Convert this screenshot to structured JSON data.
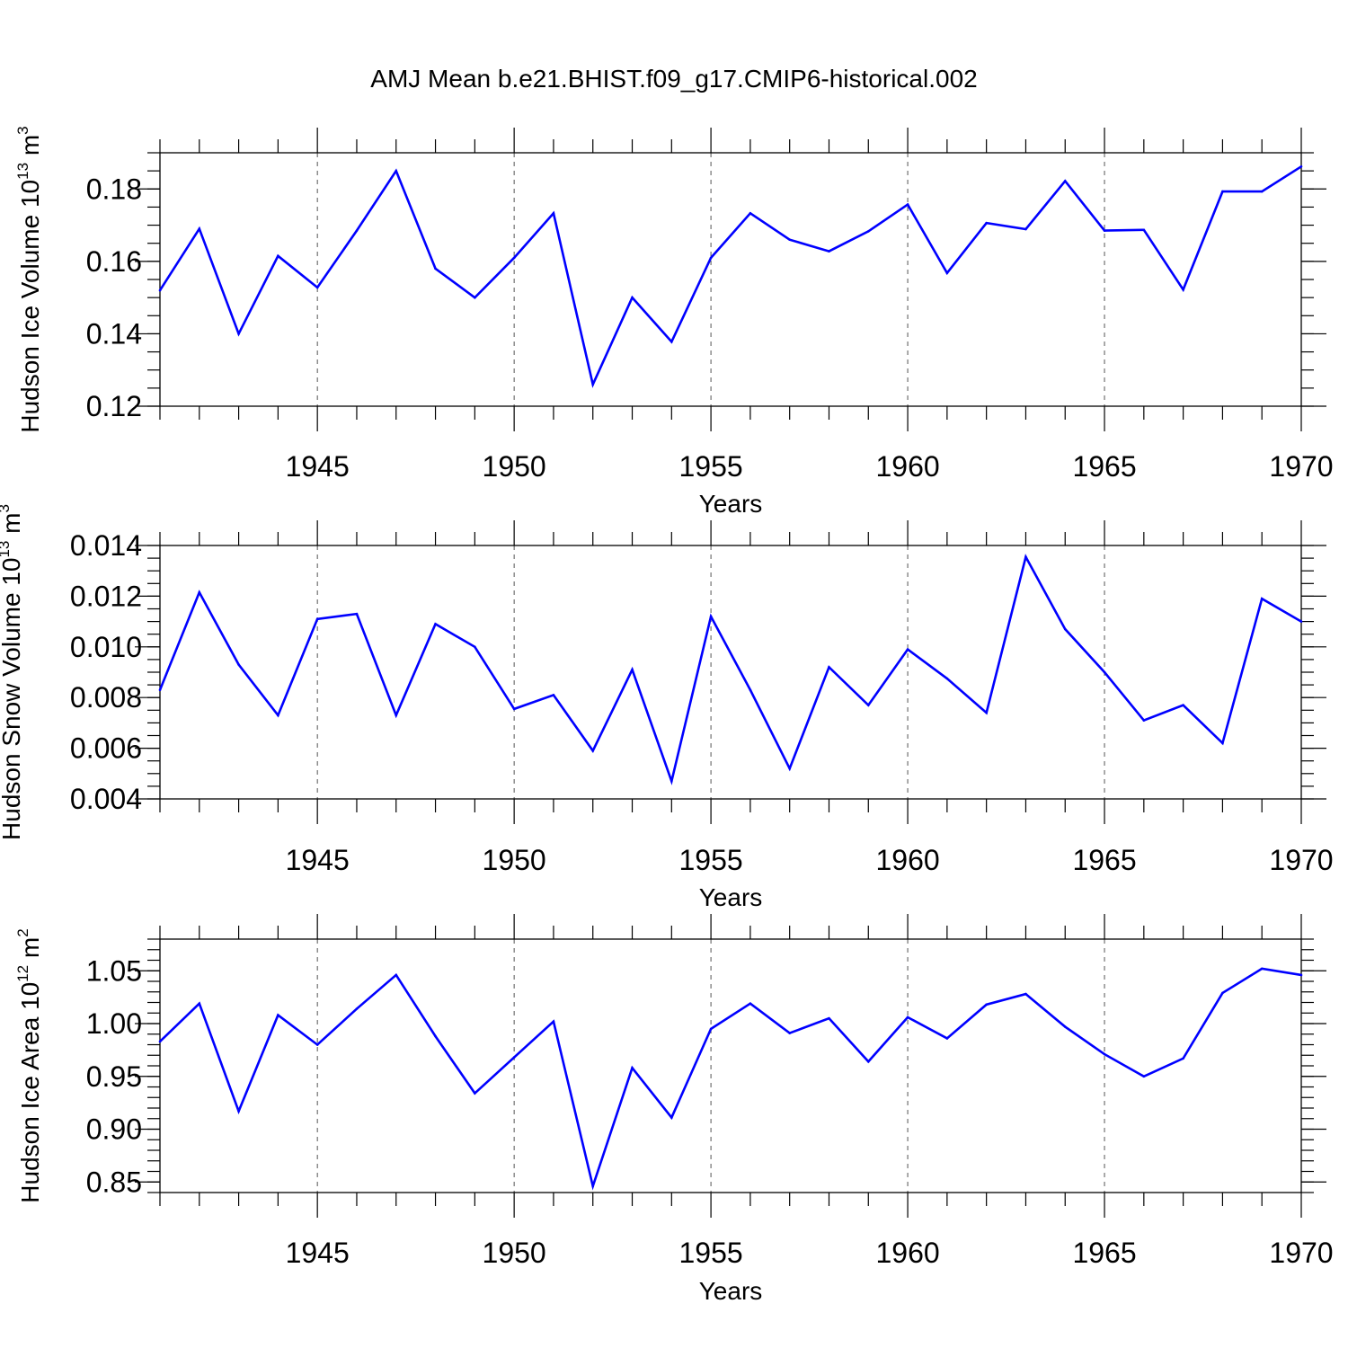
{
  "title": "AMJ Mean b.e21.BHIST.f09_g17.CMIP6-historical.002",
  "colors": {
    "series": "#0000ff",
    "axes": "#000000",
    "grid": "#555555"
  },
  "chart_data": [
    {
      "type": "line",
      "name": "ice-volume",
      "ylabel_main": "Hudson Ice Volume 10",
      "ylabel_exp": "13",
      "ylabel_unit": " m",
      "ylabel_unit_exp": "3",
      "xlabel": "Years",
      "xlim": [
        1941,
        1970
      ],
      "ylim": [
        0.12,
        0.19
      ],
      "yticks": [
        0.12,
        0.14,
        0.16,
        0.18
      ],
      "ytick_labels": [
        "0.12",
        "0.14",
        "0.16",
        "0.18"
      ],
      "yminor_step": 0.005,
      "xticks": [
        1945,
        1950,
        1955,
        1960,
        1965,
        1970
      ],
      "xtick_labels": [
        "1945",
        "1950",
        "1955",
        "1960",
        "1965",
        "1970"
      ],
      "grid": "x-dashed",
      "x": [
        1941,
        1942,
        1943,
        1944,
        1945,
        1946,
        1947,
        1948,
        1949,
        1950,
        1951,
        1952,
        1953,
        1954,
        1955,
        1956,
        1957,
        1958,
        1959,
        1960,
        1961,
        1962,
        1963,
        1964,
        1965,
        1966,
        1967,
        1968,
        1969,
        1970
      ],
      "values": [
        0.152,
        0.169,
        0.14,
        0.1615,
        0.1528,
        0.1685,
        0.185,
        0.158,
        0.15,
        0.161,
        0.1733,
        0.126,
        0.15,
        0.1378,
        0.161,
        0.1733,
        0.166,
        0.1628,
        0.1683,
        0.1757,
        0.1568,
        0.1706,
        0.1689,
        0.1822,
        0.1685,
        0.1687,
        0.1522,
        0.1793,
        0.1793,
        0.1862
      ]
    },
    {
      "type": "line",
      "name": "snow-volume",
      "ylabel_main": "Hudson Snow Volume 10",
      "ylabel_exp": "13",
      "ylabel_unit": " m",
      "ylabel_unit_exp": "3",
      "xlabel": "Years",
      "xlim": [
        1941,
        1970
      ],
      "ylim": [
        0.004,
        0.014
      ],
      "yticks": [
        0.004,
        0.006,
        0.008,
        0.01,
        0.012,
        0.014
      ],
      "ytick_labels": [
        "0.004",
        "0.006",
        "0.008",
        "0.010",
        "0.012",
        "0.014"
      ],
      "yminor_step": 0.0005,
      "xticks": [
        1945,
        1950,
        1955,
        1960,
        1965,
        1970
      ],
      "xtick_labels": [
        "1945",
        "1950",
        "1955",
        "1960",
        "1965",
        "1970"
      ],
      "grid": "x-dashed",
      "x": [
        1941,
        1942,
        1943,
        1944,
        1945,
        1946,
        1947,
        1948,
        1949,
        1950,
        1951,
        1952,
        1953,
        1954,
        1955,
        1956,
        1957,
        1958,
        1959,
        1960,
        1961,
        1962,
        1963,
        1964,
        1965,
        1966,
        1967,
        1968,
        1969,
        1970
      ],
      "values": [
        0.0083,
        0.01215,
        0.0093,
        0.0073,
        0.0111,
        0.0113,
        0.0073,
        0.0109,
        0.01,
        0.00755,
        0.0081,
        0.0059,
        0.0091,
        0.0047,
        0.0112,
        0.0083,
        0.0052,
        0.0092,
        0.0077,
        0.0099,
        0.00875,
        0.0074,
        0.01355,
        0.0107,
        0.009,
        0.0071,
        0.0077,
        0.0062,
        0.0119,
        0.011
      ]
    },
    {
      "type": "line",
      "name": "ice-area",
      "ylabel_main": "Hudson Ice Area 10",
      "ylabel_exp": "12",
      "ylabel_unit": " m",
      "ylabel_unit_exp": "2",
      "xlabel": "Years",
      "xlim": [
        1941,
        1970
      ],
      "ylim": [
        0.84,
        1.08
      ],
      "yticks": [
        0.85,
        0.9,
        0.95,
        1.0,
        1.05
      ],
      "ytick_labels": [
        "0.85",
        "0.90",
        "0.95",
        "1.00",
        "1.05"
      ],
      "yminor_step": 0.01,
      "xticks": [
        1945,
        1950,
        1955,
        1960,
        1965,
        1970
      ],
      "xtick_labels": [
        "1945",
        "1950",
        "1955",
        "1960",
        "1965",
        "1970"
      ],
      "grid": "x-dashed",
      "x": [
        1941,
        1942,
        1943,
        1944,
        1945,
        1946,
        1947,
        1948,
        1949,
        1950,
        1951,
        1952,
        1953,
        1954,
        1955,
        1956,
        1957,
        1958,
        1959,
        1960,
        1961,
        1962,
        1963,
        1964,
        1965,
        1966,
        1967,
        1968,
        1969,
        1970
      ],
      "values": [
        0.983,
        1.019,
        0.917,
        1.008,
        0.98,
        1.014,
        1.046,
        0.988,
        0.934,
        0.968,
        1.002,
        0.846,
        0.958,
        0.911,
        0.995,
        1.019,
        0.991,
        1.005,
        0.964,
        1.006,
        0.986,
        1.018,
        1.028,
        0.997,
        0.971,
        0.95,
        0.967,
        1.029,
        1.052,
        1.046
      ]
    }
  ]
}
